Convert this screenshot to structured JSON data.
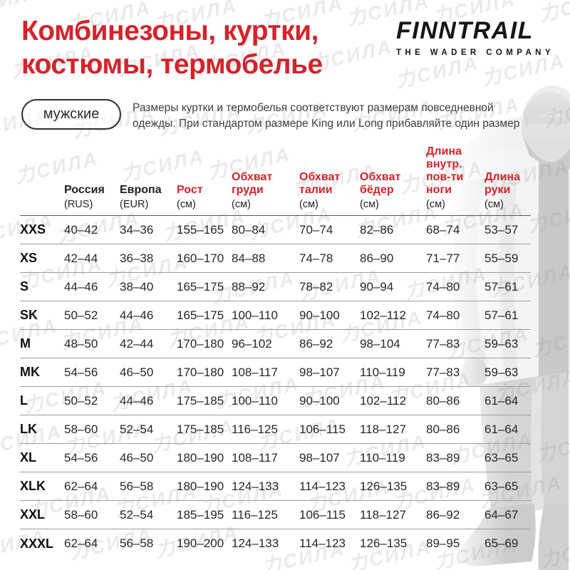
{
  "page": {
    "title_line1": "Комбинезоны, куртки,",
    "title_line2": "костюмы, термобелье"
  },
  "brand": {
    "logo": "FINNTRAIL",
    "tagline": "THE WADER COMPANY"
  },
  "badge": {
    "label": "мужские"
  },
  "description": {
    "line1": "Размеры куртки и термобелья соответствуют размерам повседневной",
    "line2": "одежды. При стандартом размере King или Long прибавляйте один размер"
  },
  "watermark": {
    "text": "力СИЛА"
  },
  "colors": {
    "accent_red": "#d5232b",
    "text_black": "#1e1e1e",
    "divider_gray": "#9b9b9b"
  },
  "table": {
    "columns": [
      {
        "id": "size",
        "title": "",
        "subtitle": "",
        "color": "black"
      },
      {
        "id": "rus",
        "title": "Россия",
        "subtitle": "(RUS)",
        "color": "black"
      },
      {
        "id": "eur",
        "title": "Европа",
        "subtitle": "(EUR)",
        "color": "black"
      },
      {
        "id": "height",
        "title": "Рост",
        "subtitle": "(см)",
        "color": "red"
      },
      {
        "id": "chest",
        "title": "Обхват груди",
        "subtitle": "(см)",
        "color": "red"
      },
      {
        "id": "waist",
        "title": "Обхват талии",
        "subtitle": "(см)",
        "color": "red"
      },
      {
        "id": "hips",
        "title": "Обхват бёдер",
        "subtitle": "(см)",
        "color": "red"
      },
      {
        "id": "inseam",
        "title": "Длина внутр. пов-ти ноги",
        "subtitle": "(см)",
        "color": "red"
      },
      {
        "id": "arm",
        "title": "Длина руки",
        "subtitle": "(см)",
        "color": "red"
      }
    ],
    "rows": [
      {
        "size": "XXS",
        "rus": "40–42",
        "eur": "34–36",
        "height": "155–165",
        "chest": "80–84",
        "waist": "70–74",
        "hips": "82–86",
        "inseam": "68–74",
        "arm": "53–57"
      },
      {
        "size": "XS",
        "rus": "42–44",
        "eur": "36–38",
        "height": "160–170",
        "chest": "84–88",
        "waist": "74–78",
        "hips": "86–90",
        "inseam": "71–77",
        "arm": "55–59"
      },
      {
        "size": "S",
        "rus": "44–46",
        "eur": "38–40",
        "height": "165–175",
        "chest": "88–92",
        "waist": "78–82",
        "hips": "90–94",
        "inseam": "74–80",
        "arm": "57–61"
      },
      {
        "size": "SK",
        "rus": "50–52",
        "eur": "44–46",
        "height": "165–175",
        "chest": "100–110",
        "waist": "90–100",
        "hips": "102–112",
        "inseam": "74–80",
        "arm": "57–61"
      },
      {
        "size": "M",
        "rus": "48–50",
        "eur": "42–44",
        "height": "170–180",
        "chest": "96–102",
        "waist": "86–92",
        "hips": "98–104",
        "inseam": "77–83",
        "arm": "59–63"
      },
      {
        "size": "MK",
        "rus": "54–56",
        "eur": "46–50",
        "height": "170–180",
        "chest": "108–117",
        "waist": "98–107",
        "hips": "110–119",
        "inseam": "77–83",
        "arm": "59–63"
      },
      {
        "size": "L",
        "rus": "50–52",
        "eur": "44–46",
        "height": "175–185",
        "chest": "100–110",
        "waist": "90–100",
        "hips": "102–112",
        "inseam": "80–86",
        "arm": "61–64"
      },
      {
        "size": "LK",
        "rus": "58–60",
        "eur": "52–54",
        "height": "175–185",
        "chest": "116–125",
        "waist": "106–115",
        "hips": "118–127",
        "inseam": "80–86",
        "arm": "61–64"
      },
      {
        "size": "XL",
        "rus": "54–56",
        "eur": "46–50",
        "height": "180–190",
        "chest": "108–117",
        "waist": "98–107",
        "hips": "110–119",
        "inseam": "83–89",
        "arm": "63–65"
      },
      {
        "size": "XLK",
        "rus": "62–64",
        "eur": "56–58",
        "height": "180–190",
        "chest": "124–133",
        "waist": "114–123",
        "hips": "126–135",
        "inseam": "83–89",
        "arm": "63–65"
      },
      {
        "size": "XXL",
        "rus": "58–60",
        "eur": "52–54",
        "height": "185–195",
        "chest": "116–125",
        "waist": "106–115",
        "hips": "118–127",
        "inseam": "86–92",
        "arm": "64–67"
      },
      {
        "size": "XXXL",
        "rus": "62–64",
        "eur": "56–58",
        "height": "190–200",
        "chest": "124–133",
        "waist": "114–123",
        "hips": "126–135",
        "inseam": "89–95",
        "arm": "65–69"
      }
    ]
  }
}
